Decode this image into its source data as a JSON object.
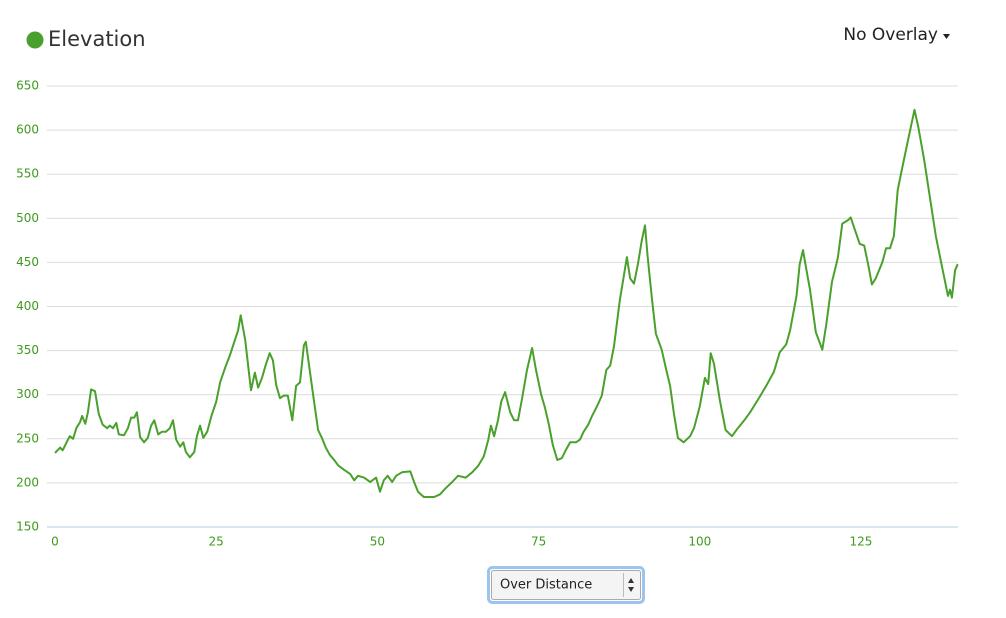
{
  "chart_data": {
    "type": "line",
    "series": [
      {
        "name": "Elevation",
        "color": "#4aa02c",
        "x": [
          0,
          0.8,
          1.2,
          2,
          2.3,
          2.8,
          3.3,
          3.9,
          4.2,
          4.7,
          5.1,
          5.6,
          6.2,
          6.8,
          7.4,
          8.1,
          8.5,
          9,
          9.5,
          9.9,
          10.7,
          11.3,
          11.8,
          12.3,
          12.7,
          13.2,
          13.8,
          14.4,
          14.9,
          15.4,
          16,
          16.6,
          17.2,
          17.8,
          18.3,
          18.8,
          19.4,
          19.9,
          20.3,
          20.9,
          21.6,
          22,
          22.5,
          23,
          23.6,
          24.3,
          25,
          25.6,
          26.5,
          27.1,
          27.8,
          28.4,
          28.8,
          29.5,
          30.4,
          31,
          31.5,
          32.1,
          32.7,
          33.3,
          33.8,
          34.3,
          34.9,
          35.5,
          36.1,
          36.8,
          37.4,
          38,
          38.6,
          38.9,
          39.5,
          40.2,
          40.8,
          41.4,
          42,
          42.6,
          43.3,
          43.9,
          44.8,
          45.8,
          46.4,
          47,
          47.9,
          48.9,
          49.8,
          50.4,
          51,
          51.6,
          52.3,
          52.9,
          53.8,
          55.1,
          55.7,
          56.3,
          57.2,
          58.8,
          59.7,
          60.6,
          61.6,
          62.5,
          63.7,
          64.7,
          65.6,
          66.5,
          67.2,
          67.6,
          68.1,
          68.7,
          69.2,
          69.8,
          70.6,
          71.2,
          71.8,
          72.4,
          73.2,
          74,
          74.6,
          75.4,
          76,
          76.6,
          77.2,
          77.9,
          78.6,
          79.2,
          79.9,
          80.8,
          81.4,
          82,
          82.7,
          83.3,
          84.2,
          84.8,
          85.5,
          86.1,
          86.7,
          87.6,
          88.7,
          89.2,
          89.8,
          90.4,
          91,
          91.5,
          91.9,
          92.6,
          93.2,
          94.1,
          94.8,
          95.4,
          96,
          96.6,
          97.5,
          98.5,
          99.1,
          100,
          100.8,
          101.3,
          101.7,
          102.2,
          103.1,
          104,
          105,
          105.9,
          106.9,
          107.8,
          109,
          110.3,
          111.5,
          112.4,
          113.4,
          114,
          115,
          115.5,
          116,
          116.5,
          117.1,
          118,
          119,
          119.6,
          120.5,
          121.4,
          122.1,
          123,
          123.4,
          124.2,
          124.8,
          125.5,
          126.1,
          126.7,
          127.3,
          128.3,
          128.9,
          129.5,
          130.1,
          130.7,
          131.4,
          132.3,
          133.3,
          133.9,
          134.8,
          135.7,
          136.6,
          137.6,
          138.5,
          138.8,
          139.1,
          139.6,
          140
        ],
        "values": [
          234,
          240,
          237,
          249,
          253,
          250,
          262,
          269,
          276,
          267,
          280,
          306,
          304,
          278,
          266,
          262,
          265,
          262,
          268,
          255,
          254,
          262,
          274,
          274,
          280,
          252,
          246,
          251,
          265,
          271,
          255,
          258,
          258,
          262,
          271,
          249,
          241,
          246,
          235,
          229,
          235,
          253,
          265,
          251,
          258,
          277,
          292,
          314,
          333,
          344,
          360,
          373,
          390,
          362,
          305,
          325,
          308,
          319,
          334,
          347,
          339,
          311,
          296,
          299,
          299,
          271,
          310,
          314,
          356,
          360,
          328,
          291,
          260,
          251,
          240,
          232,
          226,
          220,
          215,
          210,
          203,
          208,
          206,
          201,
          206,
          190,
          203,
          208,
          201,
          208,
          212,
          213,
          201,
          190,
          184,
          184,
          187,
          194,
          201,
          208,
          206,
          212,
          219,
          230,
          249,
          265,
          253,
          271,
          292,
          303,
          280,
          271,
          271,
          294,
          328,
          353,
          328,
          300,
          285,
          266,
          243,
          226,
          228,
          237,
          246,
          246,
          249,
          258,
          266,
          276,
          289,
          299,
          328,
          333,
          355,
          407,
          456,
          432,
          426,
          448,
          475,
          492,
          457,
          407,
          369,
          351,
          328,
          310,
          278,
          251,
          246,
          253,
          262,
          287,
          319,
          312,
          347,
          335,
          294,
          260,
          253,
          262,
          271,
          280,
          294,
          310,
          326,
          348,
          357,
          373,
          412,
          448,
          464,
          443,
          419,
          371,
          351,
          379,
          428,
          455,
          494,
          498,
          501,
          484,
          471,
          469,
          448,
          425,
          432,
          450,
          466,
          466,
          480,
          532,
          557,
          589,
          623,
          603,
          566,
          523,
          480,
          444,
          412,
          419,
          410,
          441,
          448
        ]
      }
    ],
    "xlim": [
      0,
      140
    ],
    "xticks": [
      0,
      25,
      50,
      75,
      100,
      125
    ],
    "ylim": [
      150,
      650
    ],
    "yticks": [
      150,
      200,
      250,
      300,
      350,
      400,
      450,
      500,
      550,
      600,
      650
    ],
    "grid": true
  },
  "ui": {
    "overlay_menu": "No Overlay",
    "mode_select": "Over Distance"
  }
}
